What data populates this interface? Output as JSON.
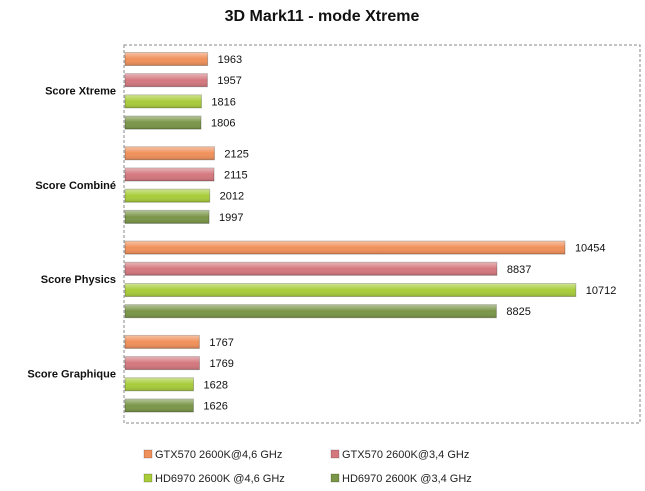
{
  "chart_data": {
    "type": "bar",
    "orientation": "horizontal",
    "title": "3D Mark11 - mode Xtreme",
    "categories": [
      "Score Xtreme",
      "Score Combiné",
      "Score Physics",
      "Score Graphique"
    ],
    "series": [
      {
        "name": "GTX570 2600K@4,6 GHz",
        "color": "#f0905a",
        "values": [
          1963,
          2125,
          10454,
          1767
        ]
      },
      {
        "name": "GTX570 2600K@3,4 GHz",
        "color": "#d4787e",
        "values": [
          1957,
          2115,
          8837,
          1769
        ]
      },
      {
        "name": "HD6970 2600K @4,6 GHz",
        "color": "#a8cc3a",
        "values": [
          1816,
          2012,
          10712,
          1628
        ]
      },
      {
        "name": "HD6970 2600K @3,4 GHz",
        "color": "#7a9648",
        "values": [
          1806,
          1997,
          8825,
          1626
        ]
      }
    ],
    "xlim": [
      0,
      12000
    ],
    "grid": false,
    "legend": "bottom",
    "data_labels": true
  }
}
